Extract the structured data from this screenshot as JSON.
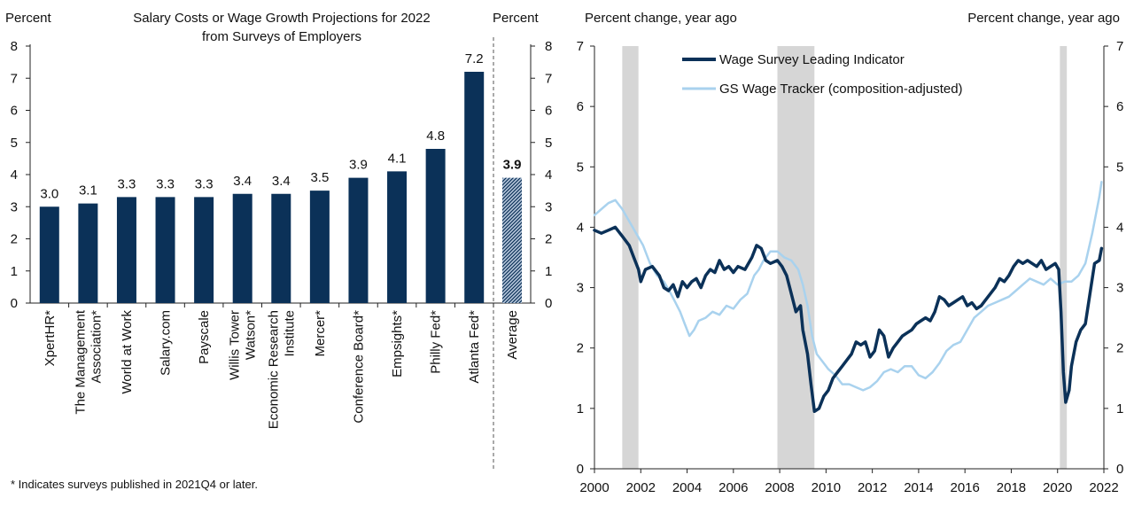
{
  "colors": {
    "navy": "#0b3158",
    "light_blue": "#a9d2ee",
    "recession": "#d6d6d6",
    "average_fill": "#5b7fa8"
  },
  "chart_data": [
    {
      "type": "bar",
      "title_line1": "Salary Costs or Wage Growth Projections for 2022",
      "title_line2": "from Surveys of Employers",
      "ylabel_left": "Percent",
      "ylabel_right": "Percent",
      "ylim": [
        0,
        8
      ],
      "yticks": [
        "0",
        "1",
        "2",
        "3",
        "4",
        "5",
        "6",
        "7",
        "8"
      ],
      "categories": [
        [
          "XpertHR*"
        ],
        [
          "The Management",
          "Association*"
        ],
        [
          "World at Work"
        ],
        [
          "Salary.com"
        ],
        [
          "Payscale"
        ],
        [
          "Willis Tower",
          "Watson*"
        ],
        [
          "Economic Research",
          "Institute"
        ],
        [
          "Mercer*"
        ],
        [
          "Conference Board*"
        ],
        [
          "Empsights*"
        ],
        [
          "Philly Fed*"
        ],
        [
          "Atlanta Fed*"
        ]
      ],
      "values": [
        3.0,
        3.1,
        3.3,
        3.3,
        3.3,
        3.4,
        3.4,
        3.5,
        3.9,
        4.1,
        4.8,
        7.2
      ],
      "labels": [
        "3.0",
        "3.1",
        "3.3",
        "3.3",
        "3.3",
        "3.4",
        "3.4",
        "3.5",
        "3.9",
        "4.1",
        "4.8",
        "7.2"
      ],
      "average": {
        "category": "Average",
        "value": 3.9,
        "label": "3.9"
      },
      "footnote": "* Indicates surveys published in 2021Q4 or later."
    },
    {
      "type": "line",
      "ylabel_left": "Percent change, year ago",
      "ylabel_right": "Percent change, year ago",
      "ylim": [
        0,
        7
      ],
      "yticks": [
        "0",
        "1",
        "2",
        "3",
        "4",
        "5",
        "6",
        "7"
      ],
      "xlim": [
        2000,
        2022
      ],
      "xticks": [
        "2000",
        "2002",
        "2004",
        "2006",
        "2008",
        "2010",
        "2012",
        "2014",
        "2016",
        "2018",
        "2020",
        "2022"
      ],
      "recessions": [
        [
          2001.2,
          2001.9
        ],
        [
          2007.9,
          2009.5
        ],
        [
          2020.1,
          2020.4
        ]
      ],
      "series": [
        {
          "name": "Wage Survey Leading Indicator",
          "points": [
            [
              2000.0,
              3.95
            ],
            [
              2000.3,
              3.9
            ],
            [
              2000.6,
              3.95
            ],
            [
              2000.9,
              4.0
            ],
            [
              2001.2,
              3.85
            ],
            [
              2001.5,
              3.7
            ],
            [
              2001.7,
              3.5
            ],
            [
              2001.9,
              3.3
            ],
            [
              2002.0,
              3.1
            ],
            [
              2002.2,
              3.3
            ],
            [
              2002.5,
              3.35
            ],
            [
              2002.8,
              3.2
            ],
            [
              2003.0,
              3.0
            ],
            [
              2003.2,
              2.95
            ],
            [
              2003.4,
              3.05
            ],
            [
              2003.6,
              2.85
            ],
            [
              2003.8,
              3.1
            ],
            [
              2004.0,
              3.0
            ],
            [
              2004.2,
              3.1
            ],
            [
              2004.4,
              3.15
            ],
            [
              2004.6,
              3.0
            ],
            [
              2004.8,
              3.2
            ],
            [
              2005.0,
              3.3
            ],
            [
              2005.2,
              3.25
            ],
            [
              2005.4,
              3.45
            ],
            [
              2005.6,
              3.3
            ],
            [
              2005.8,
              3.35
            ],
            [
              2006.0,
              3.25
            ],
            [
              2006.2,
              3.35
            ],
            [
              2006.5,
              3.3
            ],
            [
              2006.8,
              3.5
            ],
            [
              2007.0,
              3.7
            ],
            [
              2007.2,
              3.65
            ],
            [
              2007.4,
              3.45
            ],
            [
              2007.6,
              3.4
            ],
            [
              2007.9,
              3.45
            ],
            [
              2008.1,
              3.35
            ],
            [
              2008.3,
              3.2
            ],
            [
              2008.5,
              2.9
            ],
            [
              2008.7,
              2.6
            ],
            [
              2008.9,
              2.7
            ],
            [
              2009.0,
              2.3
            ],
            [
              2009.2,
              1.9
            ],
            [
              2009.35,
              1.4
            ],
            [
              2009.5,
              0.95
            ],
            [
              2009.7,
              1.0
            ],
            [
              2009.9,
              1.2
            ],
            [
              2010.1,
              1.3
            ],
            [
              2010.3,
              1.5
            ],
            [
              2010.5,
              1.6
            ],
            [
              2010.7,
              1.7
            ],
            [
              2010.9,
              1.8
            ],
            [
              2011.1,
              1.9
            ],
            [
              2011.3,
              2.1
            ],
            [
              2011.5,
              2.05
            ],
            [
              2011.7,
              2.1
            ],
            [
              2011.9,
              1.85
            ],
            [
              2012.1,
              1.95
            ],
            [
              2012.3,
              2.3
            ],
            [
              2012.5,
              2.2
            ],
            [
              2012.7,
              1.85
            ],
            [
              2012.9,
              2.0
            ],
            [
              2013.1,
              2.1
            ],
            [
              2013.3,
              2.2
            ],
            [
              2013.5,
              2.25
            ],
            [
              2013.7,
              2.3
            ],
            [
              2013.9,
              2.4
            ],
            [
              2014.1,
              2.45
            ],
            [
              2014.3,
              2.5
            ],
            [
              2014.5,
              2.45
            ],
            [
              2014.7,
              2.6
            ],
            [
              2014.9,
              2.85
            ],
            [
              2015.1,
              2.8
            ],
            [
              2015.3,
              2.7
            ],
            [
              2015.5,
              2.75
            ],
            [
              2015.7,
              2.8
            ],
            [
              2015.9,
              2.85
            ],
            [
              2016.1,
              2.7
            ],
            [
              2016.3,
              2.75
            ],
            [
              2016.5,
              2.65
            ],
            [
              2016.7,
              2.7
            ],
            [
              2016.9,
              2.8
            ],
            [
              2017.1,
              2.9
            ],
            [
              2017.3,
              3.0
            ],
            [
              2017.5,
              3.15
            ],
            [
              2017.7,
              3.1
            ],
            [
              2017.9,
              3.2
            ],
            [
              2018.1,
              3.35
            ],
            [
              2018.3,
              3.45
            ],
            [
              2018.5,
              3.4
            ],
            [
              2018.7,
              3.45
            ],
            [
              2018.9,
              3.4
            ],
            [
              2019.1,
              3.35
            ],
            [
              2019.3,
              3.45
            ],
            [
              2019.5,
              3.3
            ],
            [
              2019.7,
              3.35
            ],
            [
              2019.9,
              3.4
            ],
            [
              2020.05,
              3.3
            ],
            [
              2020.15,
              2.6
            ],
            [
              2020.25,
              1.6
            ],
            [
              2020.35,
              1.1
            ],
            [
              2020.5,
              1.3
            ],
            [
              2020.6,
              1.7
            ],
            [
              2020.8,
              2.1
            ],
            [
              2021.0,
              2.3
            ],
            [
              2021.2,
              2.4
            ],
            [
              2021.4,
              2.9
            ],
            [
              2021.6,
              3.4
            ],
            [
              2021.8,
              3.45
            ],
            [
              2021.9,
              3.65
            ]
          ]
        },
        {
          "name": "GS Wage Tracker (composition-adjusted)",
          "points": [
            [
              2000.0,
              4.2
            ],
            [
              2000.3,
              4.3
            ],
            [
              2000.6,
              4.4
            ],
            [
              2000.9,
              4.45
            ],
            [
              2001.2,
              4.3
            ],
            [
              2001.5,
              4.1
            ],
            [
              2001.8,
              3.9
            ],
            [
              2002.1,
              3.7
            ],
            [
              2002.4,
              3.4
            ],
            [
              2002.7,
              3.2
            ],
            [
              2003.0,
              3.1
            ],
            [
              2003.3,
              2.9
            ],
            [
              2003.5,
              2.75
            ],
            [
              2003.7,
              2.6
            ],
            [
              2003.9,
              2.4
            ],
            [
              2004.1,
              2.2
            ],
            [
              2004.3,
              2.3
            ],
            [
              2004.5,
              2.45
            ],
            [
              2004.8,
              2.5
            ],
            [
              2005.1,
              2.6
            ],
            [
              2005.4,
              2.55
            ],
            [
              2005.7,
              2.7
            ],
            [
              2006.0,
              2.65
            ],
            [
              2006.3,
              2.8
            ],
            [
              2006.6,
              2.9
            ],
            [
              2006.9,
              3.2
            ],
            [
              2007.1,
              3.3
            ],
            [
              2007.3,
              3.45
            ],
            [
              2007.6,
              3.6
            ],
            [
              2007.9,
              3.6
            ],
            [
              2008.2,
              3.5
            ],
            [
              2008.5,
              3.45
            ],
            [
              2008.8,
              3.3
            ],
            [
              2009.0,
              3.05
            ],
            [
              2009.2,
              2.7
            ],
            [
              2009.4,
              2.2
            ],
            [
              2009.6,
              1.9
            ],
            [
              2009.8,
              1.8
            ],
            [
              2010.1,
              1.65
            ],
            [
              2010.4,
              1.55
            ],
            [
              2010.7,
              1.4
            ],
            [
              2011.0,
              1.4
            ],
            [
              2011.3,
              1.35
            ],
            [
              2011.6,
              1.3
            ],
            [
              2011.9,
              1.35
            ],
            [
              2012.2,
              1.45
            ],
            [
              2012.5,
              1.6
            ],
            [
              2012.8,
              1.65
            ],
            [
              2013.1,
              1.6
            ],
            [
              2013.4,
              1.7
            ],
            [
              2013.7,
              1.7
            ],
            [
              2014.0,
              1.55
            ],
            [
              2014.3,
              1.5
            ],
            [
              2014.6,
              1.6
            ],
            [
              2014.9,
              1.75
            ],
            [
              2015.2,
              1.95
            ],
            [
              2015.5,
              2.05
            ],
            [
              2015.8,
              2.1
            ],
            [
              2016.1,
              2.3
            ],
            [
              2016.4,
              2.5
            ],
            [
              2016.7,
              2.6
            ],
            [
              2017.0,
              2.7
            ],
            [
              2017.3,
              2.75
            ],
            [
              2017.6,
              2.8
            ],
            [
              2017.9,
              2.85
            ],
            [
              2018.2,
              2.95
            ],
            [
              2018.5,
              3.05
            ],
            [
              2018.8,
              3.15
            ],
            [
              2019.1,
              3.1
            ],
            [
              2019.4,
              3.05
            ],
            [
              2019.7,
              3.15
            ],
            [
              2020.0,
              3.05
            ],
            [
              2020.3,
              3.1
            ],
            [
              2020.6,
              3.1
            ],
            [
              2020.9,
              3.2
            ],
            [
              2021.2,
              3.4
            ],
            [
              2021.5,
              3.9
            ],
            [
              2021.8,
              4.5
            ],
            [
              2021.9,
              4.75
            ]
          ]
        }
      ]
    }
  ]
}
